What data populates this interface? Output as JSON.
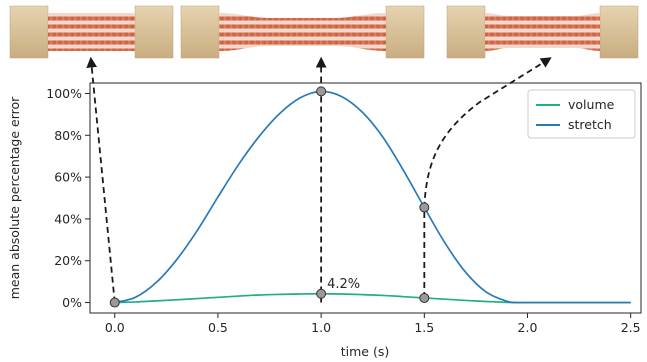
{
  "chart_data": {
    "type": "line",
    "xlabel": "time (s)",
    "ylabel": "mean absolute percentage error",
    "xlim": [
      -0.12,
      2.55
    ],
    "ylim": [
      -5,
      105
    ],
    "xticks": [
      {
        "value": 0.0,
        "label": "0.0"
      },
      {
        "value": 0.5,
        "label": "0.5"
      },
      {
        "value": 1.0,
        "label": "1.0"
      },
      {
        "value": 1.5,
        "label": "1.5"
      },
      {
        "value": 2.0,
        "label": "2.0"
      },
      {
        "value": 2.5,
        "label": "2.5"
      }
    ],
    "yticks": [
      {
        "value": 0,
        "label": "0%"
      },
      {
        "value": 20,
        "label": "20%"
      },
      {
        "value": 40,
        "label": "40%"
      },
      {
        "value": 60,
        "label": "60%"
      },
      {
        "value": 80,
        "label": "80%"
      },
      {
        "value": 100,
        "label": "100%"
      }
    ],
    "legend_position": "top-right",
    "grid": false,
    "series": [
      {
        "name": "volume",
        "color": "#1fae88",
        "x": [
          0.0,
          0.1,
          0.2,
          0.3,
          0.4,
          0.5,
          0.6,
          0.7,
          0.8,
          0.9,
          1.0,
          1.1,
          1.2,
          1.3,
          1.4,
          1.5,
          1.6,
          1.7,
          1.8,
          1.9,
          1.95,
          2.0,
          2.25,
          2.5
        ],
        "values": [
          0.0,
          0.3,
          0.8,
          1.3,
          1.9,
          2.5,
          3.1,
          3.6,
          3.9,
          4.1,
          4.2,
          4.1,
          3.8,
          3.4,
          2.8,
          2.2,
          1.6,
          1.0,
          0.5,
          0.1,
          0.0,
          0.0,
          0.0,
          0.0
        ]
      },
      {
        "name": "stretch",
        "color": "#2a7ab9",
        "x": [
          0.0,
          0.1,
          0.2,
          0.3,
          0.4,
          0.5,
          0.6,
          0.7,
          0.8,
          0.9,
          1.0,
          1.1,
          1.2,
          1.3,
          1.4,
          1.5,
          1.6,
          1.7,
          1.8,
          1.9,
          1.95,
          2.0,
          2.25,
          2.5
        ],
        "values": [
          0.0,
          2.5,
          9.5,
          20.5,
          34.5,
          50.5,
          66.0,
          79.5,
          90.5,
          98.0,
          101.0,
          98.5,
          91.0,
          79.0,
          63.0,
          45.5,
          28.5,
          14.5,
          5.0,
          0.6,
          0.0,
          0.0,
          0.0,
          0.0
        ]
      }
    ],
    "markers": [
      {
        "x": 0.0,
        "y": 0.0
      },
      {
        "x": 1.0,
        "y": 101.0
      },
      {
        "x": 1.0,
        "y": 4.2
      },
      {
        "x": 1.5,
        "y": 45.5
      },
      {
        "x": 1.5,
        "y": 2.2
      }
    ],
    "annotations": [
      {
        "text": "4.2%",
        "x": 1.0,
        "y": 4.2
      }
    ],
    "colors": {
      "marker_fill": "#9a9a9a",
      "marker_edge": "#333333",
      "arrow": "#1a1a1a",
      "clamp": "#d9c39e",
      "strands": "#d4694a"
    }
  }
}
